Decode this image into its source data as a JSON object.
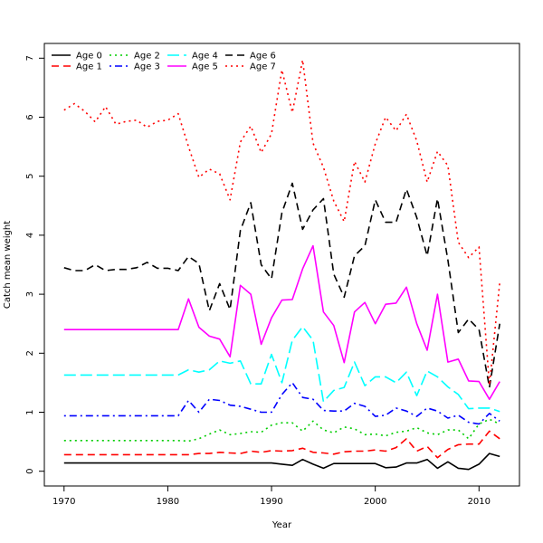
{
  "chart_data": {
    "type": "line",
    "title": "",
    "xlabel": "Year",
    "ylabel": "Catch mean weight",
    "xlim": [
      1968.1,
      2013.9
    ],
    "ylim": [
      -0.25,
      7.25
    ],
    "xticks": [
      1970,
      1980,
      1990,
      2000,
      2010
    ],
    "yticks": [
      0,
      1,
      2,
      3,
      4,
      5,
      6,
      7
    ],
    "grid": false,
    "legend_placement": "top-left",
    "x": [
      1970,
      1971,
      1972,
      1973,
      1974,
      1975,
      1976,
      1977,
      1978,
      1979,
      1980,
      1981,
      1982,
      1983,
      1984,
      1985,
      1986,
      1987,
      1988,
      1989,
      1990,
      1991,
      1992,
      1993,
      1994,
      1995,
      1996,
      1997,
      1998,
      1999,
      2000,
      2001,
      2002,
      2003,
      2004,
      2005,
      2006,
      2007,
      2008,
      2009,
      2010,
      2011,
      2012
    ],
    "series": [
      {
        "name": "Age 0",
        "color": "#000000",
        "dash": "solid",
        "values": [
          0.14,
          0.14,
          0.14,
          0.14,
          0.14,
          0.14,
          0.14,
          0.14,
          0.14,
          0.14,
          0.14,
          0.14,
          0.14,
          0.14,
          0.14,
          0.14,
          0.14,
          0.14,
          0.14,
          0.14,
          0.14,
          0.12,
          0.1,
          0.2,
          0.12,
          0.05,
          0.13,
          0.13,
          0.13,
          0.13,
          0.13,
          0.06,
          0.07,
          0.14,
          0.14,
          0.2,
          0.05,
          0.16,
          0.05,
          0.03,
          0.12,
          0.3,
          0.25
        ]
      },
      {
        "name": "Age 1",
        "color": "#ff0000",
        "dash": "dashed",
        "values": [
          0.28,
          0.28,
          0.28,
          0.28,
          0.28,
          0.28,
          0.28,
          0.28,
          0.28,
          0.28,
          0.28,
          0.28,
          0.28,
          0.3,
          0.3,
          0.32,
          0.31,
          0.3,
          0.34,
          0.32,
          0.35,
          0.34,
          0.35,
          0.39,
          0.32,
          0.31,
          0.29,
          0.33,
          0.34,
          0.34,
          0.36,
          0.34,
          0.4,
          0.55,
          0.34,
          0.42,
          0.23,
          0.37,
          0.45,
          0.46,
          0.46,
          0.68,
          0.55
        ]
      },
      {
        "name": "Age 2",
        "color": "#00cd00",
        "dash": "dotted",
        "values": [
          0.52,
          0.52,
          0.52,
          0.52,
          0.52,
          0.52,
          0.52,
          0.52,
          0.52,
          0.52,
          0.52,
          0.52,
          0.51,
          0.55,
          0.63,
          0.7,
          0.62,
          0.64,
          0.67,
          0.66,
          0.78,
          0.82,
          0.82,
          0.68,
          0.85,
          0.7,
          0.65,
          0.75,
          0.72,
          0.62,
          0.63,
          0.6,
          0.66,
          0.68,
          0.74,
          0.65,
          0.62,
          0.7,
          0.7,
          0.55,
          0.8,
          0.88,
          0.8
        ]
      },
      {
        "name": "Age 3",
        "color": "#0000ff",
        "dash": "dashdot",
        "values": [
          0.94,
          0.94,
          0.94,
          0.94,
          0.94,
          0.94,
          0.94,
          0.94,
          0.94,
          0.94,
          0.94,
          0.94,
          1.2,
          1.0,
          1.22,
          1.2,
          1.12,
          1.1,
          1.05,
          1.0,
          1.0,
          1.3,
          1.5,
          1.25,
          1.22,
          1.03,
          1.02,
          1.02,
          1.15,
          1.1,
          0.93,
          0.95,
          1.07,
          1.02,
          0.93,
          1.07,
          1.02,
          0.9,
          0.95,
          0.83,
          0.8,
          0.98,
          0.85
        ]
      },
      {
        "name": "Age 4",
        "color": "#00ffff",
        "dash": "longdash",
        "values": [
          1.63,
          1.63,
          1.63,
          1.63,
          1.63,
          1.63,
          1.63,
          1.63,
          1.63,
          1.63,
          1.63,
          1.63,
          1.72,
          1.68,
          1.72,
          1.87,
          1.83,
          1.87,
          1.48,
          1.48,
          1.98,
          1.5,
          2.22,
          2.45,
          2.22,
          1.18,
          1.37,
          1.42,
          1.85,
          1.45,
          1.6,
          1.6,
          1.5,
          1.68,
          1.28,
          1.7,
          1.6,
          1.43,
          1.3,
          1.06,
          1.07,
          1.07,
          1.01
        ]
      },
      {
        "name": "Age 5",
        "color": "#ff00ff",
        "dash": "solid",
        "values": [
          2.4,
          2.4,
          2.4,
          2.4,
          2.4,
          2.4,
          2.4,
          2.4,
          2.4,
          2.4,
          2.4,
          2.4,
          2.92,
          2.44,
          2.29,
          2.24,
          1.94,
          3.15,
          3.0,
          2.15,
          2.6,
          2.9,
          2.91,
          3.43,
          3.82,
          2.7,
          2.47,
          1.84,
          2.7,
          2.86,
          2.5,
          2.83,
          2.85,
          3.12,
          2.5,
          2.05,
          3.0,
          1.85,
          1.9,
          1.53,
          1.52,
          1.22,
          1.52
        ]
      },
      {
        "name": "Age 6",
        "color": "#000000",
        "dash": "dashed",
        "values": [
          3.45,
          3.4,
          3.4,
          3.5,
          3.4,
          3.42,
          3.42,
          3.45,
          3.54,
          3.44,
          3.44,
          3.4,
          3.64,
          3.52,
          2.72,
          3.18,
          2.74,
          4.08,
          4.55,
          3.5,
          3.26,
          4.38,
          4.88,
          4.1,
          4.43,
          4.62,
          3.34,
          2.95,
          3.65,
          3.82,
          4.6,
          4.22,
          4.22,
          4.78,
          4.3,
          3.65,
          4.62,
          3.58,
          2.35,
          2.58,
          2.4,
          1.42,
          2.5
        ]
      },
      {
        "name": "Age 7",
        "color": "#ff0000",
        "dash": "dotted",
        "values": [
          6.12,
          6.23,
          6.1,
          5.92,
          6.18,
          5.88,
          5.93,
          5.95,
          5.83,
          5.93,
          5.95,
          6.06,
          5.5,
          4.98,
          5.12,
          5.04,
          4.6,
          5.58,
          5.85,
          5.4,
          5.72,
          6.8,
          6.08,
          6.97,
          5.56,
          5.15,
          4.58,
          4.23,
          5.25,
          4.9,
          5.55,
          6.0,
          5.77,
          6.05,
          5.6,
          4.9,
          5.42,
          5.18,
          3.88,
          3.62,
          3.8,
          1.46,
          3.2
        ]
      }
    ]
  }
}
